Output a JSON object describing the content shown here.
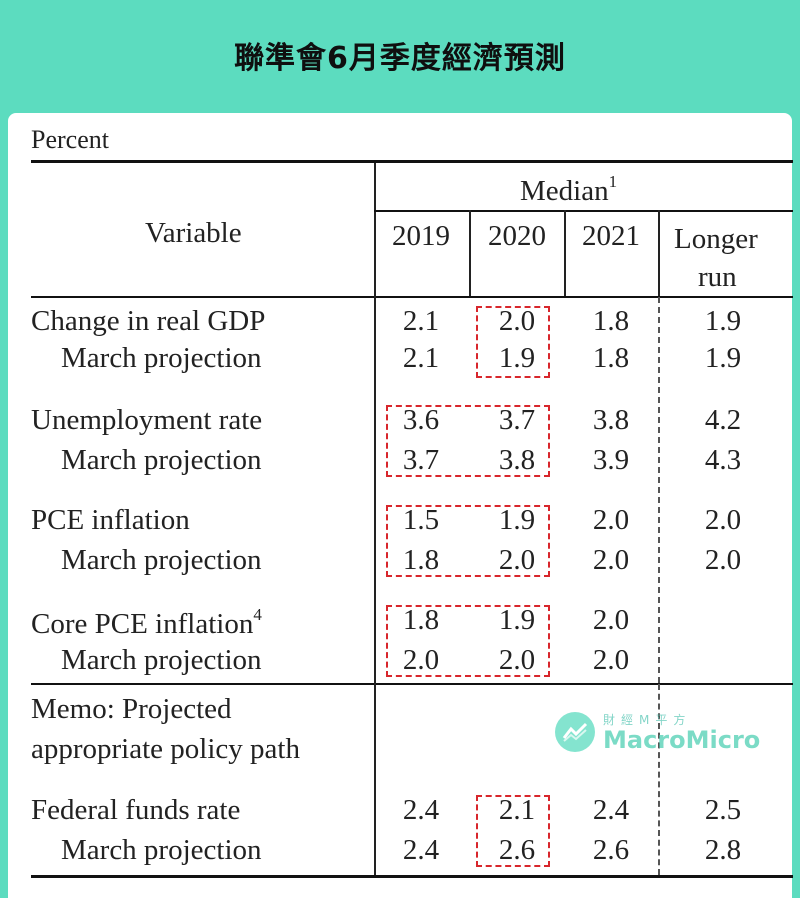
{
  "title": "聯準會6月季度經濟預測",
  "unit_label": "Percent",
  "header": {
    "variable": "Variable",
    "median": "Median",
    "median_note": "1",
    "years": [
      "2019",
      "2020",
      "2021"
    ],
    "longer_run_1": "Longer",
    "longer_run_2": "run"
  },
  "rows": [
    {
      "label": "Change in real GDP",
      "values": [
        "2.1",
        "2.0",
        "1.8",
        "1.9"
      ]
    },
    {
      "label": "March projection",
      "values": [
        "2.1",
        "1.9",
        "1.8",
        "1.9"
      ]
    },
    {
      "label": "Unemployment rate",
      "values": [
        "3.6",
        "3.7",
        "3.8",
        "4.2"
      ]
    },
    {
      "label": "March projection",
      "values": [
        "3.7",
        "3.8",
        "3.9",
        "4.3"
      ]
    },
    {
      "label": "PCE inflation",
      "values": [
        "1.5",
        "1.9",
        "2.0",
        "2.0"
      ]
    },
    {
      "label": "March projection",
      "values": [
        "1.8",
        "2.0",
        "2.0",
        "2.0"
      ]
    },
    {
      "label": "Core PCE inflation",
      "note": "4",
      "values": [
        "1.8",
        "1.9",
        "2.0",
        ""
      ]
    },
    {
      "label": "March projection",
      "values": [
        "2.0",
        "2.0",
        "2.0",
        ""
      ]
    }
  ],
  "memo": {
    "line1": "Memo: Projected",
    "line2": "appropriate policy path"
  },
  "ffr_rows": [
    {
      "label": "Federal funds rate",
      "values": [
        "2.4",
        "2.1",
        "2.4",
        "2.5"
      ]
    },
    {
      "label": "March projection",
      "values": [
        "2.4",
        "2.6",
        "2.6",
        "2.8"
      ]
    }
  ],
  "watermark": {
    "cn": "財經M平方",
    "en": "MacroMicro"
  },
  "colors": {
    "background": "#5cdcbf",
    "highlight_box": "#d8262c"
  }
}
